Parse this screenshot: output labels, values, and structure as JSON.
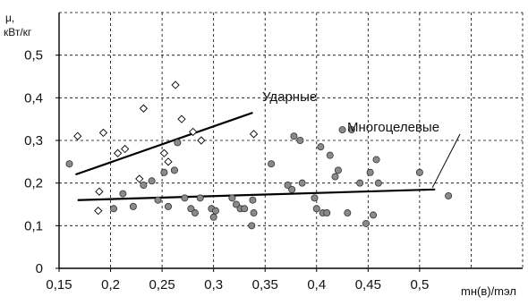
{
  "chart_data": {
    "type": "scatter",
    "title": "",
    "ylabel_line1": "μ,",
    "ylabel_line2": "кВт/кг",
    "xlabel": "mн(в)/mэл",
    "xlim": [
      0.15,
      0.6
    ],
    "ylim": [
      0,
      0.6
    ],
    "x_ticks": [
      "0,15",
      "0,2",
      "0,25",
      "0,3",
      "0,35",
      "0,4",
      "0,45",
      "0,5"
    ],
    "x_tick_values": [
      0.15,
      0.2,
      0.25,
      0.3,
      0.35,
      0.4,
      0.45,
      0.5
    ],
    "y_ticks": [
      "0",
      "0,1",
      "0,2",
      "0,3",
      "0,4",
      "0,5"
    ],
    "y_tick_values": [
      0,
      0.1,
      0.2,
      0.3,
      0.4,
      0.5
    ],
    "grid": true,
    "annotations": [
      {
        "text": "Ударные",
        "series": "Ударные"
      },
      {
        "text": "Многоцелевые",
        "series": "Многоцелевые"
      }
    ],
    "series": [
      {
        "name": "Ударные",
        "marker": "open-diamond",
        "points": [
          [
            0.168,
            0.31
          ],
          [
            0.189,
            0.18
          ],
          [
            0.188,
            0.135
          ],
          [
            0.193,
            0.318
          ],
          [
            0.207,
            0.27
          ],
          [
            0.214,
            0.28
          ],
          [
            0.228,
            0.21
          ],
          [
            0.232,
            0.375
          ],
          [
            0.252,
            0.27
          ],
          [
            0.256,
            0.25
          ],
          [
            0.263,
            0.43
          ],
          [
            0.269,
            0.35
          ],
          [
            0.28,
            0.32
          ],
          [
            0.288,
            0.3
          ],
          [
            0.339,
            0.315
          ]
        ],
        "trend": [
          [
            0.166,
            0.22
          ],
          [
            0.338,
            0.365
          ]
        ]
      },
      {
        "name": "Многоцелевые",
        "marker": "filled-circle",
        "points": [
          [
            0.16,
            0.245
          ],
          [
            0.203,
            0.14
          ],
          [
            0.212,
            0.175
          ],
          [
            0.222,
            0.145
          ],
          [
            0.232,
            0.195
          ],
          [
            0.24,
            0.205
          ],
          [
            0.246,
            0.16
          ],
          [
            0.252,
            0.225
          ],
          [
            0.256,
            0.145
          ],
          [
            0.262,
            0.23
          ],
          [
            0.265,
            0.295
          ],
          [
            0.272,
            0.165
          ],
          [
            0.278,
            0.14
          ],
          [
            0.282,
            0.13
          ],
          [
            0.287,
            0.165
          ],
          [
            0.298,
            0.14
          ],
          [
            0.3,
            0.12
          ],
          [
            0.302,
            0.135
          ],
          [
            0.318,
            0.165
          ],
          [
            0.322,
            0.15
          ],
          [
            0.326,
            0.14
          ],
          [
            0.33,
            0.14
          ],
          [
            0.337,
            0.1
          ],
          [
            0.338,
            0.16
          ],
          [
            0.339,
            0.13
          ],
          [
            0.356,
            0.245
          ],
          [
            0.372,
            0.195
          ],
          [
            0.376,
            0.185
          ],
          [
            0.378,
            0.31
          ],
          [
            0.384,
            0.3
          ],
          [
            0.386,
            0.2
          ],
          [
            0.398,
            0.165
          ],
          [
            0.4,
            0.14
          ],
          [
            0.404,
            0.285
          ],
          [
            0.406,
            0.13
          ],
          [
            0.41,
            0.13
          ],
          [
            0.413,
            0.265
          ],
          [
            0.418,
            0.215
          ],
          [
            0.421,
            0.23
          ],
          [
            0.425,
            0.325
          ],
          [
            0.43,
            0.13
          ],
          [
            0.434,
            0.325
          ],
          [
            0.442,
            0.2
          ],
          [
            0.448,
            0.105
          ],
          [
            0.452,
            0.225
          ],
          [
            0.455,
            0.125
          ],
          [
            0.458,
            0.255
          ],
          [
            0.46,
            0.2
          ],
          [
            0.5,
            0.225
          ],
          [
            0.528,
            0.17
          ]
        ],
        "trend": [
          [
            0.168,
            0.16
          ],
          [
            0.515,
            0.185
          ]
        ]
      }
    ]
  }
}
